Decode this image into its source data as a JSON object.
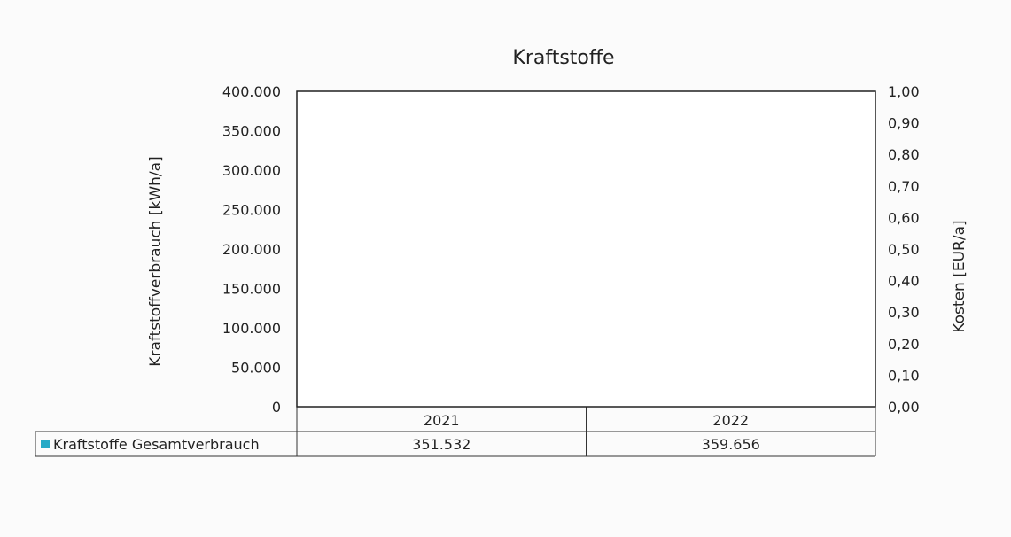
{
  "chart_data": {
    "type": "bar",
    "title": "Kraftstoffe",
    "categories": [
      "2021",
      "2022"
    ],
    "series": [
      {
        "name": "Kraftstoffe Gesamtverbrauch",
        "values": [
          351532,
          359656
        ],
        "labels": [
          "351.532",
          "359.656"
        ]
      }
    ],
    "ylabel": "Kraftstoffverbrauch [kWh/a]",
    "y2label": "Kosten [EUR/a]",
    "ylim": [
      0,
      400000
    ],
    "y2lim": [
      0,
      1
    ],
    "yticks": [
      0,
      50000,
      100000,
      150000,
      200000,
      250000,
      300000,
      350000,
      400000
    ],
    "ytick_labels": [
      "0",
      "50.000",
      "100.000",
      "150.000",
      "200.000",
      "250.000",
      "300.000",
      "350.000",
      "400.000"
    ],
    "y2ticks": [
      0,
      0.1,
      0.2,
      0.3,
      0.4,
      0.5,
      0.6,
      0.7,
      0.8,
      0.9,
      1.0
    ],
    "y2tick_labels": [
      "0,00",
      "0,10",
      "0,20",
      "0,30",
      "0,40",
      "0,50",
      "0,60",
      "0,70",
      "0,80",
      "0,90",
      "1,00"
    ],
    "grid": false,
    "legend": "data-table-below",
    "bar_color": "#26a9c6"
  }
}
